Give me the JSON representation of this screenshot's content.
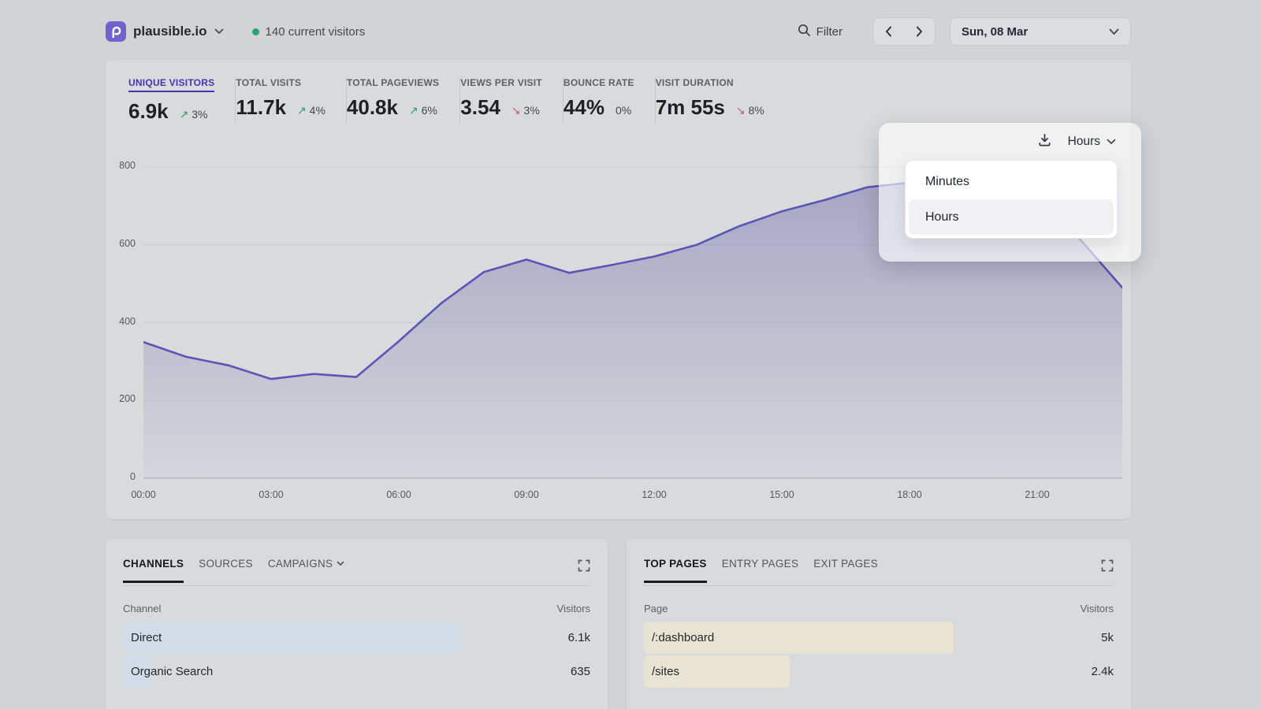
{
  "header": {
    "site_name": "plausible.io",
    "current_visitors": "140 current visitors",
    "filter_label": "Filter",
    "date_label": "Sun, 08 Mar"
  },
  "stats": [
    {
      "label": "UNIQUE VISITORS",
      "value": "6.9k",
      "arrow": "↗",
      "delta": "3%",
      "direction": "up",
      "active": true
    },
    {
      "label": "TOTAL VISITS",
      "value": "11.7k",
      "arrow": "↗",
      "delta": "4%",
      "direction": "up",
      "active": false
    },
    {
      "label": "TOTAL PAGEVIEWS",
      "value": "40.8k",
      "arrow": "↗",
      "delta": "6%",
      "direction": "up",
      "active": false
    },
    {
      "label": "VIEWS PER VISIT",
      "value": "3.54",
      "arrow": "↘",
      "delta": "3%",
      "direction": "down",
      "active": false
    },
    {
      "label": "BOUNCE RATE",
      "value": "44%",
      "arrow": "",
      "delta": "0%",
      "direction": "flat",
      "active": false
    },
    {
      "label": "VISIT DURATION",
      "value": "7m 55s",
      "arrow": "↘",
      "delta": "8%",
      "direction": "down",
      "active": false
    }
  ],
  "interval_control": {
    "selected_label": "Hours"
  },
  "dropdown_menu": {
    "options": [
      {
        "label": "Minutes",
        "selected": false
      },
      {
        "label": "Hours",
        "selected": true
      }
    ]
  },
  "chart_data": {
    "type": "area",
    "title": "Unique visitors by hour",
    "x": [
      "00:00",
      "01:00",
      "02:00",
      "03:00",
      "04:00",
      "05:00",
      "06:00",
      "07:00",
      "08:00",
      "09:00",
      "10:00",
      "11:00",
      "12:00",
      "13:00",
      "14:00",
      "15:00",
      "16:00",
      "17:00",
      "18:00",
      "19:00",
      "20:00",
      "21:00",
      "22:00",
      "23:00"
    ],
    "values": [
      350,
      312,
      290,
      255,
      268,
      260,
      352,
      450,
      530,
      562,
      528,
      548,
      570,
      600,
      648,
      686,
      715,
      748,
      760,
      755,
      725,
      672,
      615,
      490
    ],
    "xticks": [
      "00:00",
      "03:00",
      "06:00",
      "09:00",
      "12:00",
      "15:00",
      "18:00",
      "21:00"
    ],
    "yticks": [
      0,
      200,
      400,
      600,
      800
    ],
    "ylim": [
      0,
      800
    ],
    "grid": true,
    "line_color": "#5b55b7",
    "fill_color": "#7c7cb2"
  },
  "channels_card": {
    "tabs": [
      "CHANNELS",
      "SOURCES",
      "CAMPAIGNS"
    ],
    "active_tab": "CHANNELS",
    "columns": {
      "left": "Channel",
      "right": "Visitors"
    },
    "rows": [
      {
        "label": "Direct",
        "value": "6.1k",
        "bar_pct": 72
      },
      {
        "label": "Organic Search",
        "value": "635",
        "bar_pct": 6
      }
    ]
  },
  "pages_card": {
    "tabs": [
      "TOP PAGES",
      "ENTRY PAGES",
      "EXIT PAGES"
    ],
    "active_tab": "TOP PAGES",
    "columns": {
      "left": "Page",
      "right": "Visitors"
    },
    "rows": [
      {
        "label": "/:dashboard",
        "value": "5k",
        "bar_pct": 66
      },
      {
        "label": "/sites",
        "value": "2.4k",
        "bar_pct": 31
      }
    ]
  },
  "colors": {
    "accent_indigo": "#4038ae",
    "positive_green": "#2c9e68",
    "negative_red": "#c05a72",
    "live_dot_green": "#2aa46a",
    "channel_bar_blue": "#d2dce7",
    "page_bar_tan": "#e8e4d3"
  }
}
